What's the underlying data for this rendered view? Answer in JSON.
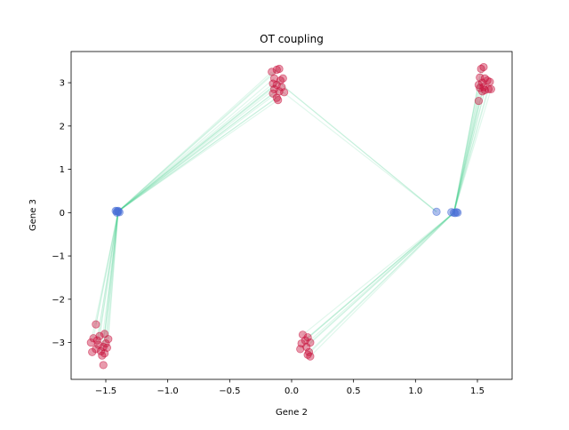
{
  "chart_data": {
    "type": "scatter",
    "title": "OT coupling",
    "xlabel": "Gene 2",
    "ylabel": "Gene 3",
    "xlim": [
      -1.78,
      1.78
    ],
    "ylim": [
      -3.85,
      3.72
    ],
    "xticks": [
      -1.5,
      -1.0,
      -0.5,
      0.0,
      0.5,
      1.0,
      1.5
    ],
    "xtick_labels": [
      "−1.5",
      "−1.0",
      "−0.5",
      "0.0",
      "0.5",
      "1.0",
      "1.5"
    ],
    "yticks": [
      -3,
      -2,
      -1,
      0,
      1,
      2,
      3
    ],
    "ytick_labels": [
      "−3",
      "−2",
      "−1",
      "0",
      "1",
      "2",
      "3"
    ],
    "grid": false,
    "colors": {
      "source": "#4a6fd6",
      "target": "#c8103c",
      "coupling": "#3ecb8a"
    },
    "source_points": [
      {
        "x": -1.41,
        "y": 0.03
      },
      {
        "x": -1.4,
        "y": 0.02
      },
      {
        "x": -1.42,
        "y": 0.04
      },
      {
        "x": -1.39,
        "y": 0.01
      },
      {
        "x": -1.41,
        "y": 0.0
      },
      {
        "x": -1.4,
        "y": 0.04
      },
      {
        "x": 1.17,
        "y": 0.02
      },
      {
        "x": 1.29,
        "y": 0.01
      },
      {
        "x": 1.31,
        "y": 0.0
      },
      {
        "x": 1.33,
        "y": 0.01
      },
      {
        "x": 1.32,
        "y": -0.01
      },
      {
        "x": 1.34,
        "y": 0.0
      }
    ],
    "target_points": [
      {
        "x": -1.58,
        "y": -2.58
      },
      {
        "x": -1.6,
        "y": -2.9
      },
      {
        "x": -1.55,
        "y": -2.85
      },
      {
        "x": -1.51,
        "y": -2.8
      },
      {
        "x": -1.48,
        "y": -2.92
      },
      {
        "x": -1.62,
        "y": -3.0
      },
      {
        "x": -1.56,
        "y": -3.05
      },
      {
        "x": -1.52,
        "y": -3.1
      },
      {
        "x": -1.5,
        "y": -3.02
      },
      {
        "x": -1.58,
        "y": -3.15
      },
      {
        "x": -1.54,
        "y": -3.2
      },
      {
        "x": -1.49,
        "y": -3.12
      },
      {
        "x": -1.61,
        "y": -3.22
      },
      {
        "x": -1.53,
        "y": -3.3
      },
      {
        "x": -1.52,
        "y": -3.52
      },
      {
        "x": -1.57,
        "y": -2.95
      },
      {
        "x": -1.51,
        "y": -3.25
      },
      {
        "x": -0.16,
        "y": 3.25
      },
      {
        "x": -0.12,
        "y": 3.3
      },
      {
        "x": -0.1,
        "y": 3.32
      },
      {
        "x": -0.14,
        "y": 3.1
      },
      {
        "x": -0.09,
        "y": 3.05
      },
      {
        "x": -0.15,
        "y": 2.98
      },
      {
        "x": -0.12,
        "y": 2.95
      },
      {
        "x": -0.08,
        "y": 2.9
      },
      {
        "x": -0.14,
        "y": 2.85
      },
      {
        "x": -0.1,
        "y": 2.8
      },
      {
        "x": -0.06,
        "y": 2.78
      },
      {
        "x": -0.15,
        "y": 2.75
      },
      {
        "x": -0.12,
        "y": 2.65
      },
      {
        "x": -0.11,
        "y": 2.6
      },
      {
        "x": -0.07,
        "y": 3.1
      },
      {
        "x": 0.09,
        "y": -2.82
      },
      {
        "x": 0.13,
        "y": -2.88
      },
      {
        "x": 0.11,
        "y": -2.95
      },
      {
        "x": 0.15,
        "y": -3.0
      },
      {
        "x": 0.08,
        "y": -3.02
      },
      {
        "x": 0.12,
        "y": -3.1
      },
      {
        "x": 0.07,
        "y": -3.15
      },
      {
        "x": 0.14,
        "y": -3.22
      },
      {
        "x": 0.13,
        "y": -3.28
      },
      {
        "x": 0.15,
        "y": -3.32
      },
      {
        "x": 1.53,
        "y": 3.32
      },
      {
        "x": 1.55,
        "y": 3.36
      },
      {
        "x": 1.52,
        "y": 3.12
      },
      {
        "x": 1.56,
        "y": 3.1
      },
      {
        "x": 1.58,
        "y": 3.05
      },
      {
        "x": 1.54,
        "y": 3.0
      },
      {
        "x": 1.6,
        "y": 3.02
      },
      {
        "x": 1.51,
        "y": 2.95
      },
      {
        "x": 1.55,
        "y": 2.9
      },
      {
        "x": 1.59,
        "y": 2.85
      },
      {
        "x": 1.56,
        "y": 2.83
      },
      {
        "x": 1.52,
        "y": 2.88
      },
      {
        "x": 1.54,
        "y": 2.8
      },
      {
        "x": 1.61,
        "y": 2.85
      },
      {
        "x": 1.51,
        "y": 2.58
      }
    ],
    "couplings": [
      {
        "x1": -1.4,
        "y1": 0.03,
        "x2": -0.16,
        "y2": 3.25
      },
      {
        "x1": -1.4,
        "y1": 0.03,
        "x2": -0.12,
        "y2": 3.3
      },
      {
        "x1": -1.4,
        "y1": 0.03,
        "x2": -0.1,
        "y2": 3.32
      },
      {
        "x1": -1.4,
        "y1": 0.03,
        "x2": -0.14,
        "y2": 3.1
      },
      {
        "x1": -1.4,
        "y1": 0.03,
        "x2": -0.09,
        "y2": 3.05
      },
      {
        "x1": -1.4,
        "y1": 0.03,
        "x2": -0.15,
        "y2": 2.98
      },
      {
        "x1": -1.4,
        "y1": 0.03,
        "x2": -0.12,
        "y2": 2.95
      },
      {
        "x1": -1.4,
        "y1": 0.03,
        "x2": -0.08,
        "y2": 2.9
      },
      {
        "x1": -1.4,
        "y1": 0.03,
        "x2": -0.14,
        "y2": 2.85
      },
      {
        "x1": -1.4,
        "y1": 0.03,
        "x2": -0.1,
        "y2": 2.8
      },
      {
        "x1": -1.4,
        "y1": 0.03,
        "x2": -0.06,
        "y2": 2.78
      },
      {
        "x1": -1.4,
        "y1": 0.03,
        "x2": -0.15,
        "y2": 2.75
      },
      {
        "x1": -1.4,
        "y1": 0.03,
        "x2": -0.12,
        "y2": 2.65
      },
      {
        "x1": -1.4,
        "y1": 0.03,
        "x2": -0.11,
        "y2": 2.6
      },
      {
        "x1": -1.4,
        "y1": 0.03,
        "x2": -0.07,
        "y2": 3.1
      },
      {
        "x1": -1.4,
        "y1": 0.03,
        "x2": -1.58,
        "y2": -2.58
      },
      {
        "x1": -1.4,
        "y1": 0.03,
        "x2": -1.6,
        "y2": -2.9
      },
      {
        "x1": -1.4,
        "y1": 0.03,
        "x2": -1.55,
        "y2": -2.85
      },
      {
        "x1": -1.4,
        "y1": 0.03,
        "x2": -1.51,
        "y2": -2.8
      },
      {
        "x1": -1.4,
        "y1": 0.03,
        "x2": -1.48,
        "y2": -2.92
      },
      {
        "x1": -1.4,
        "y1": 0.03,
        "x2": -1.62,
        "y2": -3.0
      },
      {
        "x1": -1.4,
        "y1": 0.03,
        "x2": -1.56,
        "y2": -3.05
      },
      {
        "x1": -1.4,
        "y1": 0.03,
        "x2": -1.52,
        "y2": -3.1
      },
      {
        "x1": -1.4,
        "y1": 0.03,
        "x2": -1.5,
        "y2": -3.02
      },
      {
        "x1": -1.4,
        "y1": 0.03,
        "x2": -1.58,
        "y2": -3.15
      },
      {
        "x1": -1.4,
        "y1": 0.03,
        "x2": -1.54,
        "y2": -3.2
      },
      {
        "x1": -1.4,
        "y1": 0.03,
        "x2": -1.49,
        "y2": -3.12
      },
      {
        "x1": -1.4,
        "y1": 0.03,
        "x2": -1.53,
        "y2": -3.3
      },
      {
        "x1": -1.4,
        "y1": 0.03,
        "x2": -1.57,
        "y2": -2.95
      },
      {
        "x1": -1.4,
        "y1": 0.03,
        "x2": -1.51,
        "y2": -3.25
      },
      {
        "x1": 1.17,
        "y1": 0.02,
        "x2": -0.12,
        "y2": 3.05
      },
      {
        "x1": 1.17,
        "y1": 0.02,
        "x2": -0.1,
        "y2": 2.85
      },
      {
        "x1": 1.17,
        "y1": 0.02,
        "x2": -0.08,
        "y2": 2.95
      },
      {
        "x1": 1.31,
        "y1": 0.0,
        "x2": 1.53,
        "y2": 3.32
      },
      {
        "x1": 1.31,
        "y1": 0.0,
        "x2": 1.55,
        "y2": 3.36
      },
      {
        "x1": 1.31,
        "y1": 0.0,
        "x2": 1.52,
        "y2": 3.12
      },
      {
        "x1": 1.31,
        "y1": 0.0,
        "x2": 1.56,
        "y2": 3.1
      },
      {
        "x1": 1.31,
        "y1": 0.0,
        "x2": 1.58,
        "y2": 3.05
      },
      {
        "x1": 1.31,
        "y1": 0.0,
        "x2": 1.54,
        "y2": 3.0
      },
      {
        "x1": 1.31,
        "y1": 0.0,
        "x2": 1.6,
        "y2": 3.02
      },
      {
        "x1": 1.31,
        "y1": 0.0,
        "x2": 1.51,
        "y2": 2.95
      },
      {
        "x1": 1.31,
        "y1": 0.0,
        "x2": 1.55,
        "y2": 2.9
      },
      {
        "x1": 1.31,
        "y1": 0.0,
        "x2": 1.59,
        "y2": 2.85
      },
      {
        "x1": 1.31,
        "y1": 0.0,
        "x2": 1.56,
        "y2": 2.83
      },
      {
        "x1": 1.31,
        "y1": 0.0,
        "x2": 1.52,
        "y2": 2.88
      },
      {
        "x1": 1.31,
        "y1": 0.0,
        "x2": 1.54,
        "y2": 2.8
      },
      {
        "x1": 1.31,
        "y1": 0.0,
        "x2": 1.61,
        "y2": 2.85
      },
      {
        "x1": 1.31,
        "y1": 0.0,
        "x2": 1.51,
        "y2": 2.58
      },
      {
        "x1": 1.31,
        "y1": 0.0,
        "x2": 0.09,
        "y2": -2.82
      },
      {
        "x1": 1.31,
        "y1": 0.0,
        "x2": 0.13,
        "y2": -2.88
      },
      {
        "x1": 1.31,
        "y1": 0.0,
        "x2": 0.11,
        "y2": -2.95
      },
      {
        "x1": 1.31,
        "y1": 0.0,
        "x2": 0.15,
        "y2": -3.0
      },
      {
        "x1": 1.31,
        "y1": 0.0,
        "x2": 0.08,
        "y2": -3.02
      },
      {
        "x1": 1.31,
        "y1": 0.0,
        "x2": 0.12,
        "y2": -3.1
      },
      {
        "x1": 1.31,
        "y1": 0.0,
        "x2": 0.07,
        "y2": -3.15
      },
      {
        "x1": 1.31,
        "y1": 0.0,
        "x2": 0.14,
        "y2": -3.22
      },
      {
        "x1": 1.31,
        "y1": 0.0,
        "x2": 0.13,
        "y2": -3.28
      },
      {
        "x1": 1.31,
        "y1": 0.0,
        "x2": 0.15,
        "y2": -3.32
      }
    ]
  }
}
